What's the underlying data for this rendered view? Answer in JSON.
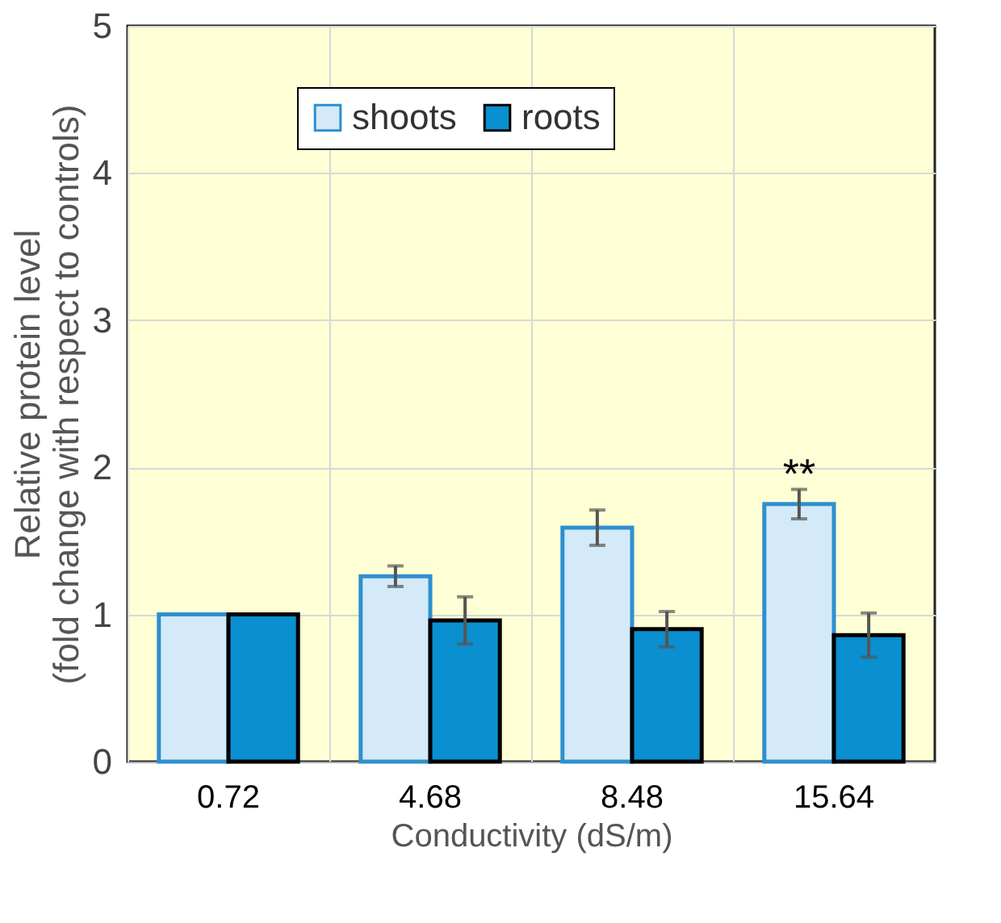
{
  "chart_data": {
    "type": "bar",
    "xlabel": "Conductivity (dS/m)",
    "ylabel": "Relative protein level\n(fold change with respect to controls)",
    "categories": [
      "0.72",
      "4.68",
      "8.48",
      "15.64"
    ],
    "series": [
      {
        "name": "shoots",
        "color": "#d4eaf8",
        "values": [
          1.0,
          1.26,
          1.59,
          1.75
        ],
        "errors": [
          null,
          0.07,
          0.12,
          0.1
        ]
      },
      {
        "name": "roots",
        "color": "#0a8fd0",
        "values": [
          1.0,
          0.96,
          0.9,
          0.86
        ],
        "errors": [
          null,
          0.16,
          0.12,
          0.15
        ]
      }
    ],
    "ylim": [
      0,
      5
    ],
    "yticks": [
      0,
      1,
      2,
      3,
      4,
      5
    ],
    "grid": true,
    "legend": "top",
    "annotations": [
      "**"
    ]
  }
}
